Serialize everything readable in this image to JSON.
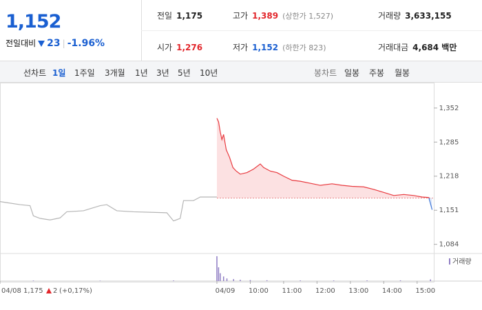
{
  "quote": {
    "price": "1,152",
    "change_label": "전일대비",
    "change": "23",
    "change_pct": "-1.96%"
  },
  "stats": [
    {
      "label": "전일",
      "value": "1,175"
    },
    {
      "label": "고가",
      "value": "1,389",
      "note": "(상한가 1,527)"
    },
    {
      "label": "거래량",
      "value": "3,633,155"
    },
    {
      "label": "시가",
      "value": "1,276"
    },
    {
      "label": "저가",
      "value": "1,152",
      "note": "(하한가 823)"
    },
    {
      "label": "거래대금",
      "value": "4,684 백만"
    }
  ],
  "toolbar": {
    "line_label": "선차트",
    "periods": [
      "1일",
      "1주일",
      "3개월",
      "1년",
      "3년",
      "5년",
      "10년"
    ],
    "active_period": 0,
    "candle_label": "봉차트",
    "candles": [
      "일봉",
      "주봉",
      "월봉"
    ]
  },
  "footer": {
    "price": "1,175",
    "change": "2",
    "change_pct": "(+0,17%)"
  },
  "chart_data": {
    "type": "line",
    "xlim": [
      0,
      13
    ],
    "ylim": [
      1070,
      1368
    ],
    "yticks": [
      {
        "value": 1084,
        "label": "1,084"
      },
      {
        "value": 1151,
        "label": "1,151"
      },
      {
        "value": 1218,
        "label": "1,218"
      },
      {
        "value": 1285,
        "label": "1,285"
      },
      {
        "value": 1352,
        "label": "1,352"
      }
    ],
    "xticks": [
      {
        "value": 0,
        "label": "04/08"
      },
      {
        "value": 6.5,
        "label": "04/09"
      },
      {
        "value": 7.5,
        "label": "10:00"
      },
      {
        "value": 8.5,
        "label": "11:00"
      },
      {
        "value": 9.5,
        "label": "12:00"
      },
      {
        "value": 10.5,
        "label": "13:00"
      },
      {
        "value": 11.5,
        "label": "14:00"
      },
      {
        "value": 12.5,
        "label": "15:00"
      }
    ],
    "reference_line": 1175,
    "series": [
      {
        "color": "#b5b5b5",
        "x": [
          0,
          0.2,
          0.6,
          0.9,
          1.0,
          1.2,
          1.5,
          1.8,
          2.0,
          2.5,
          3.0,
          3.2,
          3.5,
          4.0,
          4.5,
          5.0,
          5.2,
          5.4,
          5.5,
          5.8,
          6.0,
          6.5
        ],
        "values": [
          1168,
          1166,
          1162,
          1160,
          1140,
          1135,
          1132,
          1136,
          1148,
          1150,
          1160,
          1162,
          1150,
          1148,
          1147,
          1146,
          1130,
          1135,
          1170,
          1170,
          1177,
          1177
        ]
      },
      {
        "color": "#e8383d",
        "color_below": "#3b74d6",
        "x": [
          6.5,
          6.55,
          6.6,
          6.65,
          6.7,
          6.78,
          6.88,
          6.98,
          7.08,
          7.2,
          7.4,
          7.6,
          7.8,
          7.9,
          8.1,
          8.3,
          8.5,
          8.75,
          9.0,
          9.3,
          9.6,
          9.95,
          10.25,
          10.55,
          10.9,
          11.2,
          11.5,
          11.8,
          12.1,
          12.4,
          12.65,
          12.85,
          12.95
        ],
        "values": [
          1332,
          1325,
          1305,
          1290,
          1300,
          1270,
          1255,
          1235,
          1228,
          1222,
          1225,
          1232,
          1242,
          1235,
          1228,
          1225,
          1218,
          1210,
          1208,
          1204,
          1200,
          1203,
          1200,
          1198,
          1197,
          1192,
          1186,
          1180,
          1182,
          1180,
          1177,
          1176,
          1152
        ]
      }
    ],
    "volume": {
      "name": "거래량",
      "color": "#8e7cc3",
      "ylim": [
        0,
        400000
      ],
      "x": [
        1.0,
        3.0,
        5.2,
        6.5,
        6.55,
        6.6,
        6.7,
        6.8,
        7.0,
        7.2,
        7.5,
        8.0,
        9.0,
        10.0,
        11.0,
        12.0,
        12.9
      ],
      "values": [
        8000,
        6000,
        9000,
        380000,
        210000,
        120000,
        70000,
        40000,
        30000,
        20000,
        15000,
        12000,
        10000,
        9000,
        10000,
        11000,
        25000
      ]
    }
  }
}
